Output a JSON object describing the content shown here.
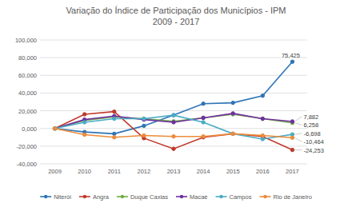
{
  "chart_data": {
    "type": "line",
    "title": "Variação do Índice de Participação dos Municípios - IPM",
    "subtitle": "2009 - 2017",
    "categories": [
      "2009",
      "2010",
      "2011",
      "2012",
      "2013",
      "2014",
      "2015",
      "2016",
      "2017"
    ],
    "series": [
      {
        "name": "Niterói",
        "color": "#2e75b6",
        "marker": "circle",
        "values": [
          0,
          -4,
          -6,
          3,
          15,
          28,
          29,
          37,
          75.425
        ],
        "value_labels": [
          null,
          null,
          null,
          null,
          null,
          null,
          null,
          null,
          "75,425"
        ]
      },
      {
        "name": "Angra",
        "color": "#c0392b",
        "marker": "circle",
        "values": [
          0,
          16,
          19,
          -11,
          -23,
          -10,
          -6,
          -9,
          -24.253
        ],
        "value_labels": [
          null,
          null,
          null,
          null,
          null,
          null,
          null,
          null,
          "-24,253"
        ]
      },
      {
        "name": "Duque Caxias",
        "color": "#70ad47",
        "marker": "circle",
        "values": [
          0,
          9,
          13,
          11,
          8,
          12,
          16,
          11,
          6.258
        ],
        "value_labels": [
          null,
          null,
          null,
          null,
          null,
          null,
          null,
          null,
          "6,258"
        ]
      },
      {
        "name": "Macaé",
        "color": "#7030a0",
        "marker": "circle",
        "values": [
          0,
          10,
          14,
          10,
          7,
          12,
          17,
          11,
          7.882
        ],
        "value_labels": [
          null,
          null,
          null,
          null,
          null,
          null,
          null,
          null,
          "7,882"
        ]
      },
      {
        "name": "Campos",
        "color": "#4bacc6",
        "marker": "circle",
        "values": [
          0,
          7,
          11,
          11,
          15,
          7,
          -6,
          -12,
          -6.698
        ],
        "value_labels": [
          null,
          null,
          null,
          null,
          null,
          null,
          null,
          null,
          "-6,698"
        ]
      },
      {
        "name": "Rio de Janeiro",
        "color": "#ed8b3a",
        "marker": "circle",
        "values": [
          0,
          -7,
          -10,
          -8,
          -9,
          -9,
          -6,
          -8,
          -10.464
        ],
        "value_labels": [
          null,
          null,
          null,
          null,
          null,
          null,
          null,
          null,
          "-10,464"
        ]
      }
    ],
    "ylim": [
      -40,
      100
    ],
    "yticks": [
      {
        "value": -40,
        "label": "-40,000"
      },
      {
        "value": -20,
        "label": "-20,000"
      },
      {
        "value": 0,
        "label": "0,000"
      },
      {
        "value": 20,
        "label": "20,000"
      },
      {
        "value": 40,
        "label": "40,000"
      },
      {
        "value": 60,
        "label": "60,000"
      },
      {
        "value": 80,
        "label": "80,000"
      },
      {
        "value": 100,
        "label": "100,000"
      }
    ],
    "grid": true,
    "legend": "bottom"
  }
}
